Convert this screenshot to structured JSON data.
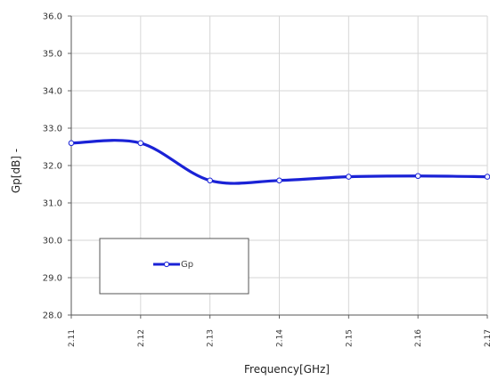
{
  "chart_data": {
    "type": "line",
    "title": "",
    "xlabel": "Frequency[GHz]",
    "ylabel": "Gp[dB] -",
    "x": [
      "2.11",
      "2.12",
      "2.13",
      "2.14",
      "2.15",
      "2.16",
      "2.17"
    ],
    "series": [
      {
        "name": "Gp",
        "values": [
          32.6,
          32.6,
          31.6,
          31.6,
          31.7,
          31.72,
          31.7
        ],
        "color": "#1a22d6"
      }
    ],
    "ylim": [
      28.0,
      36.0
    ],
    "yticks": [
      "28.0",
      "29.0",
      "30.0",
      "31.0",
      "32.0",
      "33.0",
      "34.0",
      "35.0",
      "36.0"
    ],
    "grid": true,
    "legend_position": "lower-left"
  }
}
